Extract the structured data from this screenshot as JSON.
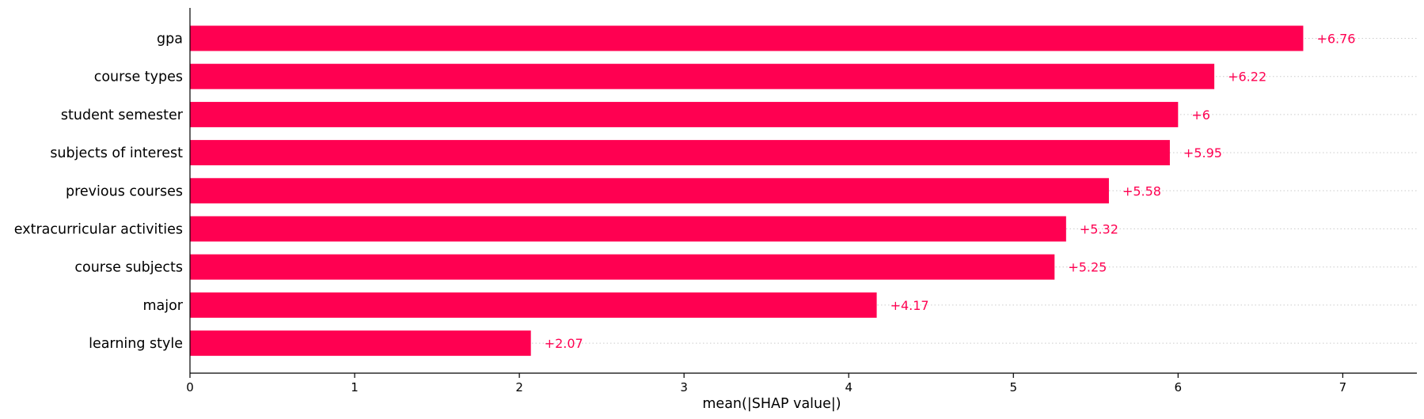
{
  "chart_data": {
    "type": "bar",
    "orientation": "horizontal",
    "categories": [
      "gpa",
      "course types",
      "student semester",
      "subjects of interest",
      "previous courses",
      "extracurricular activities",
      "course subjects",
      "major",
      "learning style"
    ],
    "values": [
      6.76,
      6.22,
      6.0,
      5.95,
      5.58,
      5.32,
      5.25,
      4.17,
      2.07
    ],
    "value_labels": [
      "+6.76",
      "+6.22",
      "+6",
      "+5.95",
      "+5.58",
      "+5.32",
      "+5.25",
      "+4.17",
      "+2.07"
    ],
    "xlabel": "mean(|SHAP value|)",
    "ylabel": "",
    "xlim": [
      0,
      7.45
    ],
    "xticks": [
      0,
      1,
      2,
      3,
      4,
      5,
      6,
      7
    ],
    "xtick_labels": [
      "0",
      "1",
      "2",
      "3",
      "4",
      "5",
      "6",
      "7"
    ],
    "grid": "dotted guide lines to the right of each bar",
    "bar_color": "#ff0051",
    "label_color": "#ff0051",
    "guide_color": "#cccccc"
  }
}
